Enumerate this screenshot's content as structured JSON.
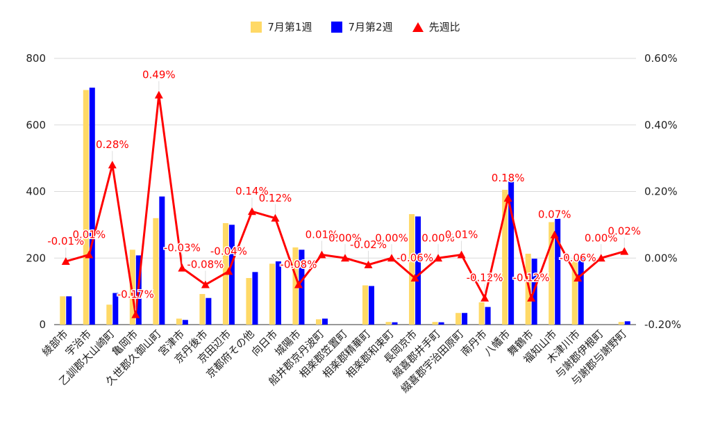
{
  "chart_data": {
    "type": "bar",
    "categories": [
      "綾部市",
      "宇治市",
      "乙訓郡大山崎町",
      "亀岡市",
      "久世郡久御山町",
      "宮津市",
      "京丹後市",
      "京田辺市",
      "京都府その他",
      "向日市",
      "城陽市",
      "船井郡京丹波町",
      "相楽郡笠置町",
      "相楽郡精華町",
      "相楽郡和束町",
      "長岡京市",
      "綴喜郡井手町",
      "綴喜郡宇治田原町",
      "南丹市",
      "八幡市",
      "舞鶴市",
      "福知山市",
      "木津川市",
      "与謝郡伊根町",
      "与謝郡与謝野町"
    ],
    "series": [
      {
        "name": "7月第1週",
        "type": "bar",
        "axis": "left",
        "color": "#ffd966",
        "values": [
          85,
          705,
          60,
          225,
          320,
          18,
          92,
          305,
          140,
          183,
          232,
          16,
          0,
          118,
          8,
          332,
          8,
          35,
          67,
          405,
          213,
          308,
          198,
          0,
          8
        ]
      },
      {
        "name": "7月第2週",
        "type": "bar",
        "axis": "left",
        "color": "#0000ff",
        "values": [
          85,
          712,
          95,
          208,
          385,
          14,
          80,
          300,
          158,
          190,
          225,
          18,
          0,
          116,
          7,
          325,
          7,
          35,
          53,
          430,
          198,
          318,
          200,
          0,
          10
        ]
      },
      {
        "name": "先週比",
        "type": "line",
        "axis": "right",
        "color": "#ff0000",
        "marker": "triangle",
        "values": [
          -0.01,
          0.01,
          0.28,
          -0.17,
          0.49,
          -0.03,
          -0.08,
          -0.04,
          0.14,
          0.12,
          -0.08,
          0.01,
          0.0,
          -0.02,
          0.0,
          -0.06,
          0.0,
          0.01,
          -0.12,
          0.18,
          -0.12,
          0.07,
          -0.06,
          0.0,
          0.02
        ],
        "labels": [
          "-0.01%",
          "0.01%",
          "0.28%",
          "-0.17%",
          "0.49%",
          "-0.03%",
          "-0.08%",
          "-0.04%",
          "0.14%",
          "0.12%",
          "-0.08%",
          "0.01%",
          "0.00%",
          "-0.02%",
          "0.00%",
          "-0.06%",
          "0.00%",
          "0.01%",
          "-0.12%",
          "0.18%",
          "-0.12%",
          "0.07%",
          "-0.06%",
          "0.00%",
          "0.02%"
        ]
      }
    ],
    "left_axis": {
      "ylim": [
        0,
        800
      ],
      "ticks": [
        0,
        200,
        400,
        600,
        800
      ],
      "tick_labels": [
        "0",
        "200",
        "400",
        "600",
        "800"
      ]
    },
    "right_axis": {
      "ylim": [
        -0.2,
        0.6
      ],
      "ticks": [
        -0.2,
        0,
        0.2,
        0.4,
        0.6
      ],
      "tick_labels": [
        "-0.20%",
        "0.00%",
        "0.20%",
        "0.40%",
        "0.60%"
      ]
    },
    "grid": true,
    "legend_position": "top-center"
  }
}
